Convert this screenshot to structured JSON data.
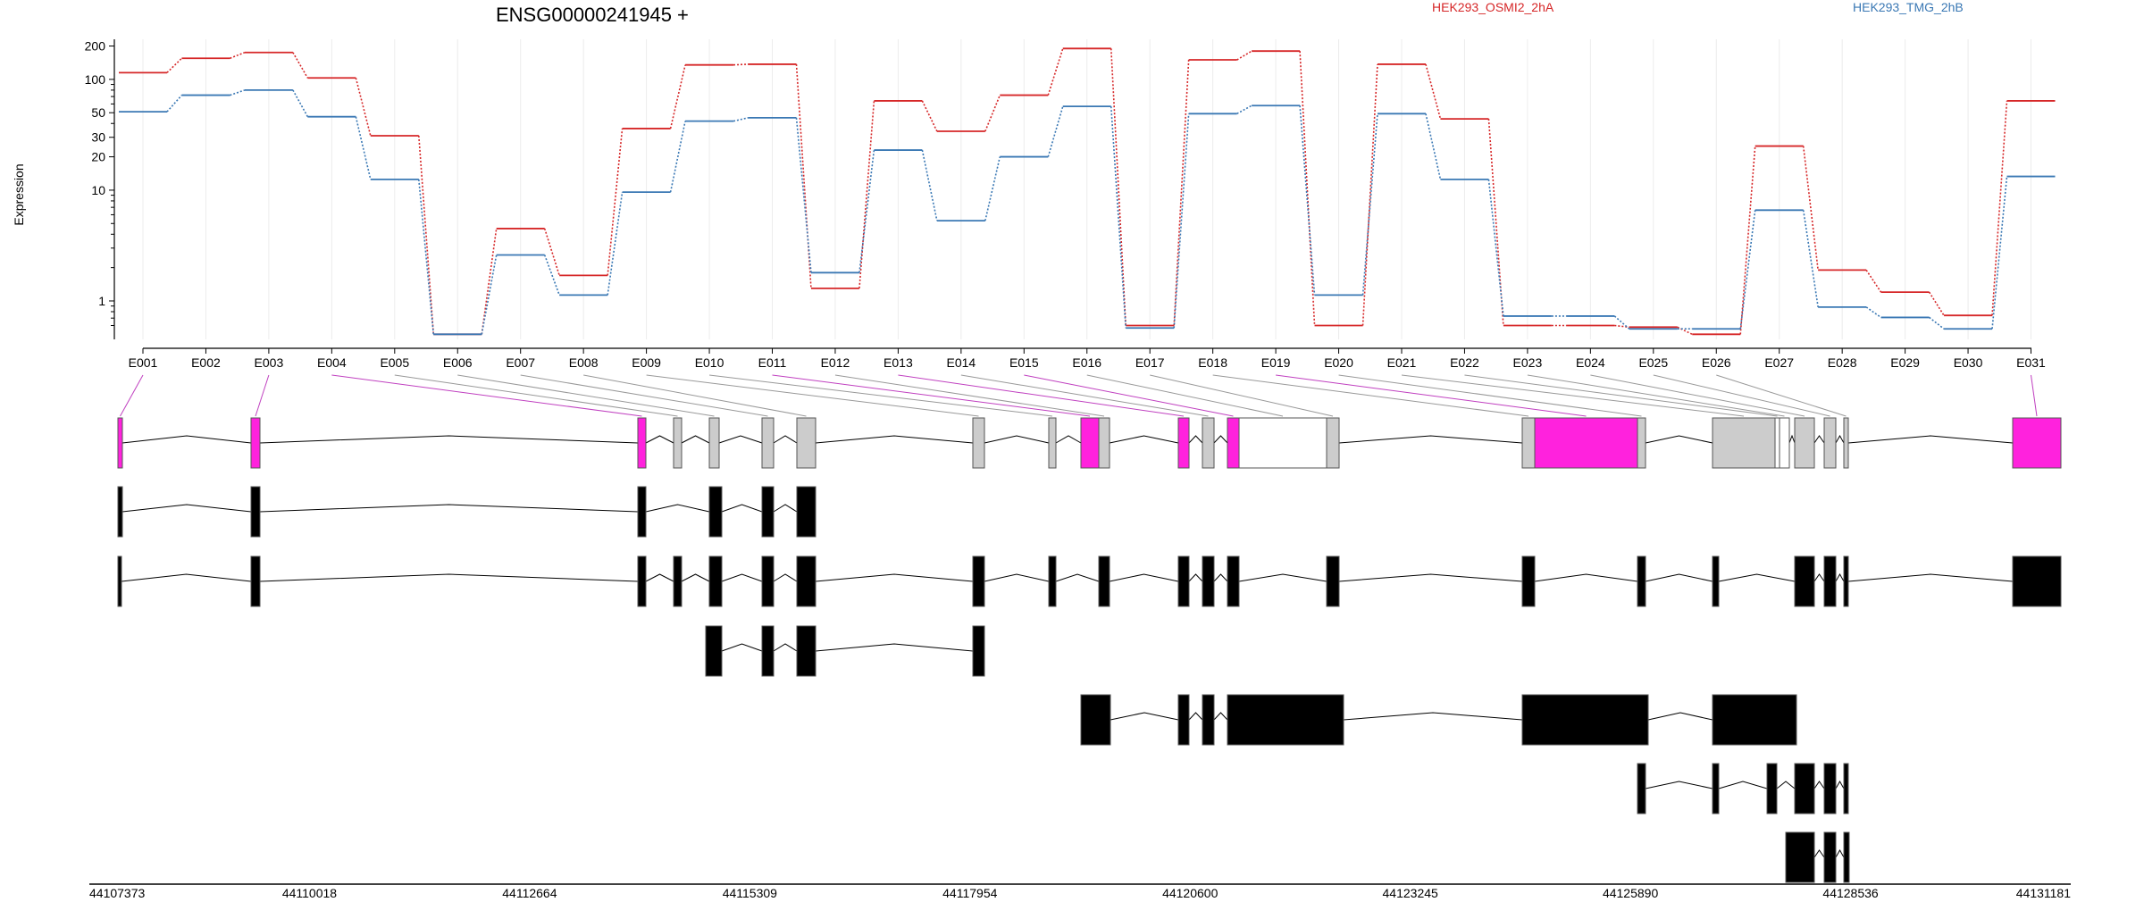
{
  "chart_data": {
    "type": "line",
    "title": "ENSG00000241945 +",
    "ylabel": "Expression",
    "yscale": "log",
    "ylim": [
      0.45,
      230
    ],
    "yticks": [
      1,
      10,
      20,
      30,
      50,
      100,
      200
    ],
    "ytick_labels": [
      "1",
      "10",
      "20",
      "30",
      "50",
      "100",
      "200"
    ],
    "grid": "vertical",
    "legend_position": "top",
    "categories": [
      "E001",
      "E002",
      "E003",
      "E004",
      "E005",
      "E006",
      "E007",
      "E008",
      "E009",
      "E010",
      "E011",
      "E012",
      "E013",
      "E014",
      "E015",
      "E016",
      "E017",
      "E018",
      "E019",
      "E020",
      "E021",
      "E022",
      "E023",
      "E024",
      "E025",
      "E026",
      "E027",
      "E028",
      "E029",
      "E030",
      "E031"
    ],
    "series": [
      {
        "name": "HEK293_OSMI2_2hA",
        "color": "#d62728",
        "values": [
          115,
          155,
          175,
          103,
          31,
          0.5,
          4.5,
          1.7,
          36,
          135,
          137,
          1.3,
          64,
          34,
          72,
          190,
          0.6,
          150,
          180,
          0.6,
          137,
          44,
          0.6,
          0.6,
          0.58,
          0.5,
          25,
          1.9,
          1.2,
          0.74,
          64
        ]
      },
      {
        "name": "HEK293_TMG_2hB",
        "color": "#3a78b4",
        "values": [
          51,
          72,
          80,
          46,
          12.5,
          0.5,
          2.6,
          1.13,
          9.6,
          42,
          45,
          1.8,
          23,
          5.3,
          20,
          57,
          0.57,
          49,
          58,
          1.13,
          49,
          12.5,
          0.73,
          0.73,
          0.56,
          0.56,
          6.6,
          0.88,
          0.71,
          0.56,
          13.3
        ]
      }
    ],
    "genomic_axis": {
      "labels": [
        "44107373",
        "44110018",
        "44112664",
        "44115309",
        "44117954",
        "44120600",
        "44123245",
        "44125890",
        "44128536",
        "44131181"
      ]
    }
  },
  "colors": {
    "highlight": "#ff22dd",
    "exon": "#cccccc",
    "transcript": "#000000",
    "connector": "#999999"
  }
}
